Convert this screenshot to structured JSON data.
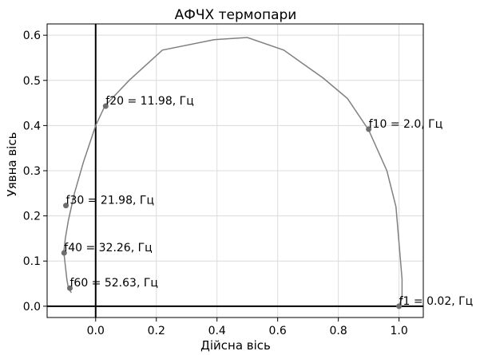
{
  "chart_data": {
    "type": "line",
    "title": "АФЧХ термопари",
    "xlabel": "Дійсна вісь",
    "ylabel": "Уявна вісь",
    "xlim": [
      -0.16,
      1.08
    ],
    "ylim": [
      -0.025,
      0.625
    ],
    "x_ticks": [
      0.0,
      0.2,
      0.4,
      0.6,
      0.8,
      1.0
    ],
    "y_ticks": [
      0.0,
      0.1,
      0.2,
      0.3,
      0.4,
      0.5,
      0.6
    ],
    "x_tick_labels": [
      "0.0",
      "0.2",
      "0.4",
      "0.6",
      "0.8",
      "1.0"
    ],
    "y_tick_labels": [
      "0.0",
      "0.1",
      "0.2",
      "0.3",
      "0.4",
      "0.5",
      "0.6"
    ],
    "grid": true,
    "line_color": "#808080",
    "point_color": "#6e6e6e",
    "series": [
      {
        "x": [
          1.0,
          1.01,
          1.01,
          1.005,
          0.99,
          0.96,
          0.9,
          0.83,
          0.75,
          0.62,
          0.5,
          0.39,
          0.22,
          0.11,
          0.03,
          0.0,
          -0.04,
          -0.07,
          -0.09,
          -0.1,
          -0.105,
          -0.1,
          -0.095,
          -0.09,
          -0.08
        ],
        "y": [
          0.0,
          0.02,
          0.06,
          0.1,
          0.22,
          0.3,
          0.39,
          0.46,
          0.505,
          0.567,
          0.595,
          0.59,
          0.567,
          0.5,
          0.443,
          0.4,
          0.32,
          0.25,
          0.19,
          0.15,
          0.12,
          0.09,
          0.06,
          0.04,
          0.03
        ]
      }
    ],
    "markers": [
      {
        "x": 1.0,
        "y": 0.0,
        "label": "f1 = 0.02, Гц"
      },
      {
        "x": 0.9,
        "y": 0.392,
        "label": "f10 = 2.0, Гц"
      },
      {
        "x": 0.033,
        "y": 0.443,
        "label": "f20 = 11.98, Гц"
      },
      {
        "x": -0.098,
        "y": 0.223,
        "label": "f30 = 21.98, Гц"
      },
      {
        "x": -0.104,
        "y": 0.118,
        "label": "f40 = 32.26, Гц"
      },
      {
        "x": -0.085,
        "y": 0.04,
        "label": "f60 = 52.63, Гц"
      }
    ]
  }
}
